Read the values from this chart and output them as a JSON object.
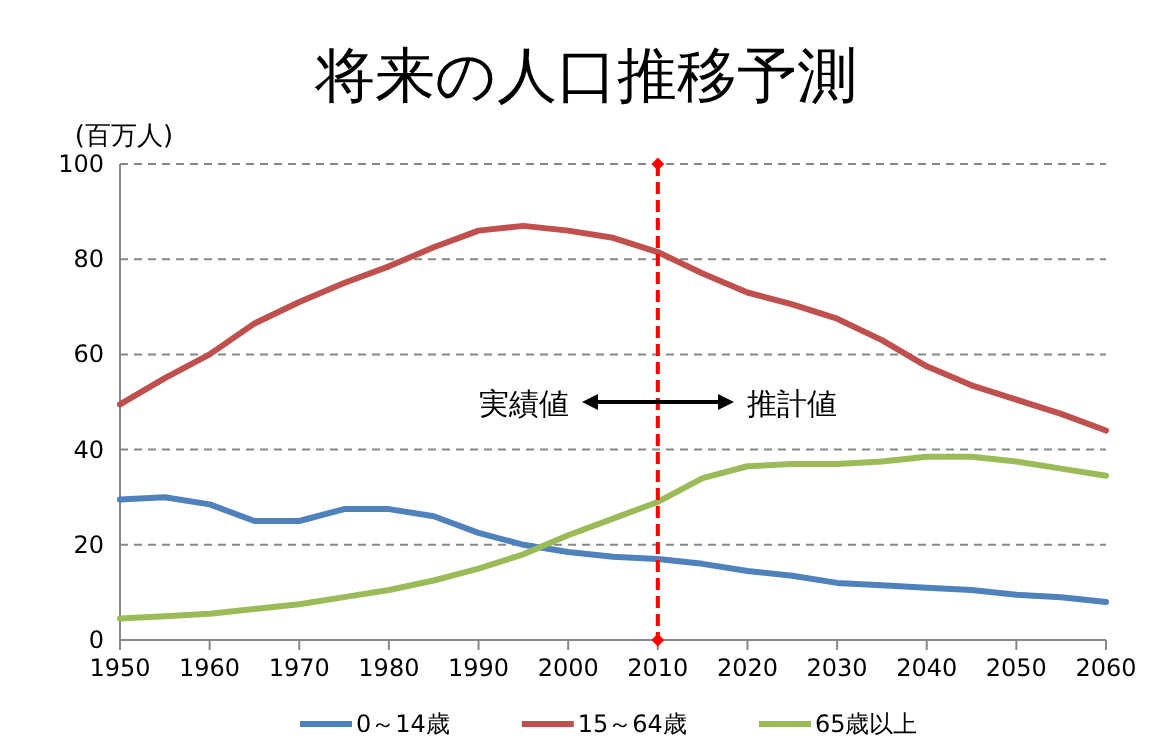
{
  "chart_data": {
    "type": "line",
    "title": "将来の人口推移予測",
    "ylabel": "(百万人)",
    "x": [
      1950,
      1955,
      1960,
      1965,
      1970,
      1975,
      1980,
      1985,
      1990,
      1995,
      2000,
      2005,
      2010,
      2015,
      2020,
      2025,
      2030,
      2035,
      2040,
      2045,
      2050,
      2055,
      2060
    ],
    "series": [
      {
        "name": "0～14歳",
        "color": "#4f81bd",
        "values": [
          29.5,
          30,
          28.5,
          25,
          25,
          27.5,
          27.5,
          26,
          22.5,
          20,
          18.5,
          17.5,
          17,
          16,
          14.5,
          13.5,
          12,
          11.5,
          11,
          10.5,
          9.5,
          9,
          8
        ]
      },
      {
        "name": "15～64歳",
        "color": "#c0504d",
        "values": [
          49.5,
          55,
          60,
          66.5,
          71,
          75,
          78.5,
          82.5,
          86,
          87,
          86,
          84.5,
          81.5,
          77,
          73,
          70.5,
          67.5,
          63,
          57.5,
          53.5,
          50.5,
          47.5,
          44
        ]
      },
      {
        "name": "65歳以上",
        "color": "#9bbb59",
        "values": [
          4.5,
          5,
          5.5,
          6.5,
          7.5,
          9,
          10.5,
          12.5,
          15,
          18,
          22,
          25.5,
          29,
          34,
          36.5,
          37,
          37,
          37.5,
          38.5,
          38.5,
          37.5,
          36,
          34.5
        ]
      }
    ],
    "xlim": [
      1950,
      2060
    ],
    "xticks": [
      1950,
      1960,
      1970,
      1980,
      1990,
      2000,
      2010,
      2020,
      2030,
      2040,
      2050,
      2060
    ],
    "ylim": [
      0,
      100
    ],
    "yticks": [
      0,
      20,
      40,
      60,
      80,
      100
    ],
    "grid": "y",
    "legend": "bottom",
    "marker": "none",
    "line_style": "solid",
    "ref_lines": [
      {
        "axis": "x",
        "value": 2010,
        "color": "#ff0000",
        "line_style": "dashed"
      }
    ],
    "annotations": [
      "実績値",
      "推計値"
    ]
  }
}
